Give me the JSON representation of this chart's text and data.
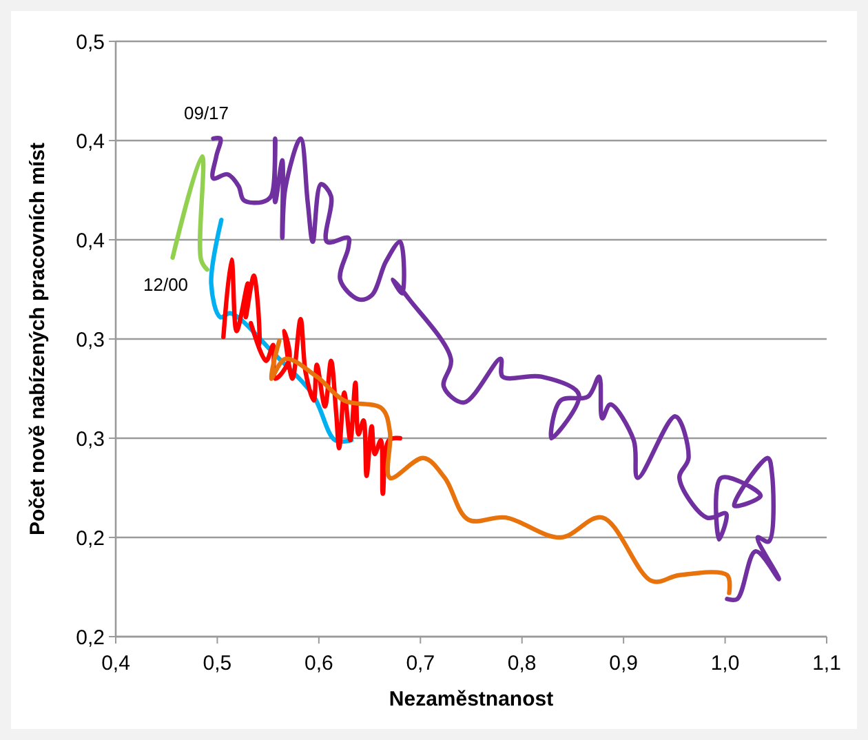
{
  "chart_data": {
    "type": "line",
    "xlabel": "Nezaměstnanost",
    "ylabel": "Počet nově nabízených pracovních míst",
    "xlim": [
      0.4,
      1.1
    ],
    "xticks": [
      {
        "value": 0.4,
        "label": "0,4"
      },
      {
        "value": 0.5,
        "label": "0,5"
      },
      {
        "value": 0.6,
        "label": "0,6"
      },
      {
        "value": 0.7,
        "label": "0,7"
      },
      {
        "value": 0.8,
        "label": "0,8"
      },
      {
        "value": 0.9,
        "label": "0,9"
      },
      {
        "value": 1.0,
        "label": "1,0"
      },
      {
        "value": 1.1,
        "label": "1,1"
      }
    ],
    "ylim": [
      0.2,
      0.5
    ],
    "yticks": [
      {
        "value": 0.2,
        "label": "0,2"
      },
      {
        "value": 0.25,
        "label": "0,2"
      },
      {
        "value": 0.3,
        "label": "0,3"
      },
      {
        "value": 0.35,
        "label": "0,3"
      },
      {
        "value": 0.4,
        "label": "0,4"
      },
      {
        "value": 0.45,
        "label": "0,4"
      },
      {
        "value": 0.5,
        "label": "0,5"
      }
    ],
    "grid": "y",
    "marker": "none",
    "line_style": "solid",
    "annotations": [
      {
        "text": "09/17",
        "x": 0.496,
        "y": 0.451
      },
      {
        "text": "12/00",
        "x": 0.456,
        "y": 0.391
      }
    ],
    "series": [
      {
        "color": "#92d050",
        "x": [
          0.456,
          0.485,
          0.484,
          0.49
        ],
        "values": [
          0.391,
          0.442,
          0.39,
          0.385
        ]
      },
      {
        "color": "#00b0f0",
        "x": [
          0.504,
          0.494,
          0.503,
          0.513,
          0.557,
          0.594,
          0.616,
          0.632
        ],
        "values": [
          0.41,
          0.378,
          0.361,
          0.363,
          0.342,
          0.322,
          0.299,
          0.299
        ]
      },
      {
        "color": "#ff0000",
        "x": [
          0.506,
          0.514,
          0.519,
          0.53,
          0.528,
          0.536,
          0.541,
          0.533,
          0.548,
          0.555,
          0.557,
          0.571,
          0.566,
          0.574,
          0.582,
          0.587,
          0.595,
          0.598,
          0.606,
          0.612,
          0.617,
          0.62,
          0.625,
          0.631,
          0.636,
          0.639,
          0.644,
          0.647,
          0.652,
          0.655,
          0.661,
          0.663,
          0.669,
          0.68
        ],
        "values": [
          0.351,
          0.39,
          0.354,
          0.378,
          0.361,
          0.382,
          0.347,
          0.358,
          0.339,
          0.347,
          0.33,
          0.34,
          0.354,
          0.33,
          0.36,
          0.333,
          0.319,
          0.337,
          0.316,
          0.339,
          0.313,
          0.295,
          0.323,
          0.299,
          0.328,
          0.302,
          0.309,
          0.281,
          0.306,
          0.292,
          0.299,
          0.272,
          0.299,
          0.3
        ]
      },
      {
        "color": "#e8720c",
        "x": [
          0.561,
          0.553,
          0.567,
          0.598,
          0.625,
          0.662,
          0.67,
          0.67,
          0.703,
          0.724,
          0.747,
          0.784,
          0.838,
          0.879,
          0.928,
          0.955,
          1.002,
          1.004
        ],
        "values": [
          0.349,
          0.33,
          0.34,
          0.331,
          0.319,
          0.315,
          0.303,
          0.28,
          0.29,
          0.28,
          0.259,
          0.26,
          0.25,
          0.26,
          0.228,
          0.231,
          0.231,
          0.222
        ]
      },
      {
        "color": "#7030a0",
        "x": [
          0.496,
          0.503,
          0.499,
          0.496,
          0.51,
          0.521,
          0.526,
          0.544,
          0.553,
          0.557,
          0.557,
          0.564,
          0.564,
          0.567,
          0.582,
          0.589,
          0.594,
          0.602,
          0.612,
          0.608,
          0.629,
          0.629,
          0.621,
          0.639,
          0.652,
          0.666,
          0.68,
          0.682,
          0.673,
          0.689,
          0.73,
          0.723,
          0.743,
          0.779,
          0.781,
          0.819,
          0.856,
          0.829,
          0.838,
          0.865,
          0.876,
          0.879,
          0.887,
          0.91,
          0.914,
          0.951,
          0.964,
          0.955,
          0.982,
          1.001,
          0.994,
          0.996,
          1.035,
          1.009,
          1.042,
          1.046,
          1.043,
          1.032,
          1.053,
          1.03,
          1.012,
          1.002
        ],
        "values": [
          0.451,
          0.451,
          0.442,
          0.431,
          0.433,
          0.427,
          0.42,
          0.419,
          0.422,
          0.451,
          0.419,
          0.44,
          0.401,
          0.426,
          0.451,
          0.419,
          0.399,
          0.428,
          0.422,
          0.399,
          0.401,
          0.396,
          0.38,
          0.37,
          0.372,
          0.389,
          0.399,
          0.373,
          0.38,
          0.37,
          0.34,
          0.326,
          0.318,
          0.34,
          0.331,
          0.331,
          0.322,
          0.3,
          0.319,
          0.321,
          0.331,
          0.31,
          0.317,
          0.299,
          0.28,
          0.311,
          0.29,
          0.28,
          0.26,
          0.262,
          0.249,
          0.28,
          0.271,
          0.266,
          0.29,
          0.283,
          0.248,
          0.25,
          0.229,
          0.243,
          0.219,
          0.219
        ]
      }
    ]
  }
}
